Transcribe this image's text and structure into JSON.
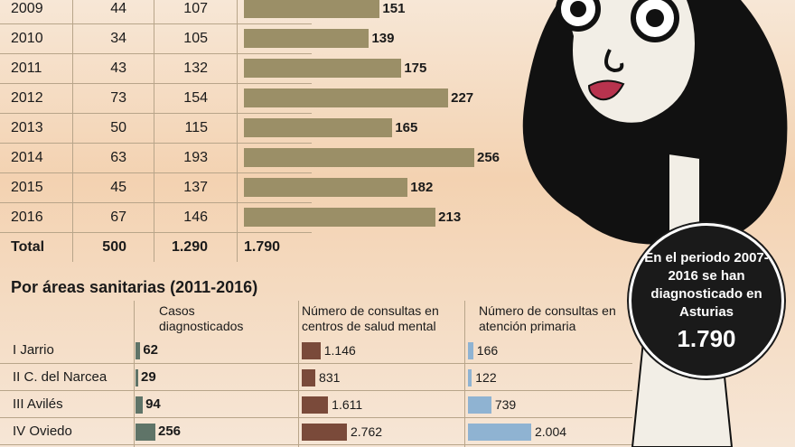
{
  "chart_data": [
    {
      "type": "table",
      "rows": [
        {
          "year": "2009",
          "c1": "44",
          "c2": "107",
          "bar": 151,
          "bar_label": "151"
        },
        {
          "year": "2010",
          "c1": "34",
          "c2": "105",
          "bar": 139,
          "bar_label": "139"
        },
        {
          "year": "2011",
          "c1": "43",
          "c2": "132",
          "bar": 175,
          "bar_label": "175"
        },
        {
          "year": "2012",
          "c1": "73",
          "c2": "154",
          "bar": 227,
          "bar_label": "227"
        },
        {
          "year": "2013",
          "c1": "50",
          "c2": "115",
          "bar": 165,
          "bar_label": "165"
        },
        {
          "year": "2014",
          "c1": "63",
          "c2": "193",
          "bar": 256,
          "bar_label": "256"
        },
        {
          "year": "2015",
          "c1": "45",
          "c2": "137",
          "bar": 182,
          "bar_label": "182"
        },
        {
          "year": "2016",
          "c1": "67",
          "c2": "146",
          "bar": 213,
          "bar_label": "213"
        }
      ],
      "total": {
        "label": "Total",
        "c1": "500",
        "c2": "1.290",
        "bar_label": "1.790"
      },
      "bar_max": 256
    },
    {
      "type": "bar",
      "title": "Por áreas sanitarias (2011-2016)",
      "column_headers": [
        "Casos diagnosticados",
        "Número de consultas en centros de salud mental",
        "Número de consultas en atención primaria"
      ],
      "rows": [
        {
          "name": "I Jarrio",
          "casos": 62,
          "casos_label": "62",
          "salud_mental": 1146,
          "salud_mental_label": "1.146",
          "primaria": 166,
          "primaria_label": "166"
        },
        {
          "name": "II C. del Narcea",
          "casos": 29,
          "casos_label": "29",
          "salud_mental": 831,
          "salud_mental_label": "831",
          "primaria": 122,
          "primaria_label": "122"
        },
        {
          "name": "III Avilés",
          "casos": 94,
          "casos_label": "94",
          "salud_mental": 1611,
          "salud_mental_label": "1.611",
          "primaria": 739,
          "primaria_label": "739"
        },
        {
          "name": "IV Oviedo",
          "casos": 256,
          "casos_label": "256",
          "salud_mental": 2762,
          "salud_mental_label": "2.762",
          "primaria": 2004,
          "primaria_label": "2.004"
        }
      ],
      "max": {
        "casos": 256,
        "salud_mental": 2762,
        "primaria": 2004
      }
    }
  ],
  "badge": {
    "text": "En el periodo 2007-2016 se han diagnosticado en Asturias",
    "number": "1.790"
  },
  "colors": {
    "year_bar": "#9b8f67",
    "casos_bar": "#5f7468",
    "salud_mental_bar": "#7a4a3a",
    "primaria_bar": "#8fb3d2"
  }
}
